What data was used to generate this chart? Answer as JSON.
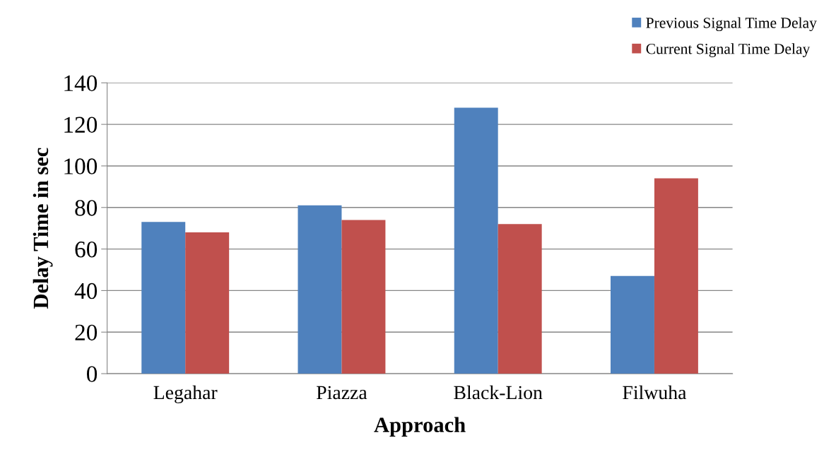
{
  "chart_data": {
    "type": "bar",
    "xlabel": "Approach",
    "ylabel": "Delay Time in sec",
    "categories": [
      "Legahar",
      "Piazza",
      "Black-Lion",
      "Filwuha"
    ],
    "series": [
      {
        "name": "Previous Signal Time Delay",
        "color": "#4f81bd",
        "values": [
          73,
          81,
          128,
          47
        ]
      },
      {
        "name": "Current Signal Time Delay",
        "color": "#c0504d",
        "values": [
          68,
          74,
          72,
          94
        ]
      }
    ],
    "ylim": [
      0,
      140
    ],
    "yticks": [
      0,
      20,
      40,
      60,
      80,
      100,
      120,
      140
    ],
    "grid": "y",
    "legend": "top right"
  }
}
